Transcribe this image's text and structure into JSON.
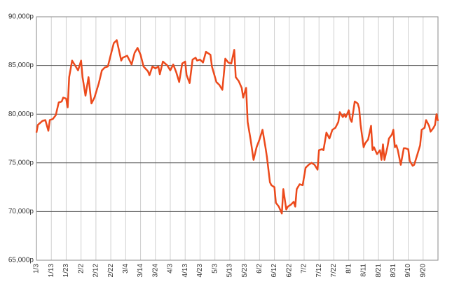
{
  "chart_data": {
    "type": "line",
    "color": "#ec4a1c",
    "grid": true,
    "x": [
      0,
      1,
      4,
      6,
      8,
      9,
      11,
      13,
      15,
      17,
      18,
      20,
      21,
      22,
      24,
      26,
      28,
      30,
      31,
      33,
      35,
      37,
      39,
      42,
      44,
      46,
      48,
      50,
      52,
      54,
      57,
      58,
      61,
      64,
      66,
      68,
      70,
      72,
      75,
      76,
      78,
      80,
      82,
      83,
      85,
      88,
      90,
      92,
      94,
      96,
      98,
      100,
      101,
      103,
      105,
      107,
      108,
      110,
      112,
      114,
      117,
      118,
      121,
      123,
      125,
      127,
      129,
      131,
      133,
      134,
      136,
      138,
      139,
      141,
      142,
      144,
      146,
      148,
      150,
      152,
      154,
      155,
      157,
      158,
      160,
      161,
      163,
      165,
      166,
      168,
      169,
      171,
      173,
      174,
      175,
      177,
      179,
      181,
      183,
      185,
      187,
      189,
      190,
      192,
      193,
      195,
      197,
      199,
      201,
      203,
      204,
      206,
      207,
      208,
      210,
      211,
      212,
      214,
      216,
      217,
      218,
      220,
      221,
      223,
      225,
      226,
      227,
      229,
      231,
      232,
      233,
      234,
      236,
      237,
      239,
      240,
      241,
      242,
      243,
      245,
      247,
      248,
      250,
      251,
      253,
      254,
      256,
      258,
      259,
      261,
      262,
      264,
      265,
      267,
      268,
      269,
      270
    ],
    "values": [
      78100,
      78900,
      79300,
      79400,
      78300,
      79400,
      79500,
      79900,
      81200,
      81300,
      81700,
      81600,
      80700,
      83800,
      85500,
      85000,
      84500,
      85500,
      83800,
      81900,
      83800,
      81100,
      81700,
      83200,
      84500,
      84800,
      84900,
      86100,
      87300,
      87600,
      85500,
      85800,
      86000,
      85100,
      86300,
      86800,
      86100,
      84900,
      84400,
      84000,
      84900,
      84700,
      84900,
      84100,
      85400,
      85000,
      84500,
      85100,
      84300,
      83300,
      85200,
      85400,
      84000,
      83200,
      85600,
      85800,
      85500,
      85600,
      85300,
      86400,
      86100,
      84900,
      83300,
      83000,
      82500,
      85700,
      85300,
      85200,
      86600,
      83800,
      83400,
      82700,
      81700,
      82700,
      79200,
      77400,
      75300,
      76600,
      77400,
      78400,
      76600,
      75600,
      73000,
      72700,
      72500,
      70900,
      70500,
      69800,
      72300,
      70200,
      70500,
      70700,
      71000,
      70500,
      72300,
      72800,
      72700,
      74500,
      74800,
      75000,
      74800,
      74300,
      76300,
      76400,
      76300,
      78100,
      77500,
      78400,
      78600,
      79200,
      80200,
      79700,
      80000,
      79700,
      80400,
      79500,
      79200,
      81300,
      81100,
      80600,
      78900,
      76600,
      77000,
      77400,
      78800,
      76300,
      76600,
      75900,
      76300,
      75300,
      76900,
      75300,
      76600,
      77500,
      77900,
      78400,
      76600,
      76800,
      76300,
      74800,
      76500,
      76500,
      76400,
      75200,
      74700,
      74800,
      75800,
      76800,
      78400,
      78600,
      79400,
      78800,
      78200,
      78600,
      78900,
      80000,
      79300
    ],
    "xlim": [
      0,
      270
    ],
    "xticks": [
      {
        "value": 0,
        "label": "1/3"
      },
      {
        "value": 10,
        "label": "1/13"
      },
      {
        "value": 20,
        "label": "1/23"
      },
      {
        "value": 30,
        "label": "2/2"
      },
      {
        "value": 40,
        "label": "2/12"
      },
      {
        "value": 50,
        "label": "2/22"
      },
      {
        "value": 60,
        "label": "3/4"
      },
      {
        "value": 70,
        "label": "3/14"
      },
      {
        "value": 80,
        "label": "3/24"
      },
      {
        "value": 90,
        "label": "4/3"
      },
      {
        "value": 100,
        "label": "4/13"
      },
      {
        "value": 110,
        "label": "4/23"
      },
      {
        "value": 120,
        "label": "5/3"
      },
      {
        "value": 130,
        "label": "5/13"
      },
      {
        "value": 140,
        "label": "5/23"
      },
      {
        "value": 150,
        "label": "6/2"
      },
      {
        "value": 160,
        "label": "6/12"
      },
      {
        "value": 170,
        "label": "6/22"
      },
      {
        "value": 180,
        "label": "7/2"
      },
      {
        "value": 190,
        "label": "7/12"
      },
      {
        "value": 200,
        "label": "7/22"
      },
      {
        "value": 210,
        "label": "8/1"
      },
      {
        "value": 220,
        "label": "8/11"
      },
      {
        "value": 230,
        "label": "8/21"
      },
      {
        "value": 240,
        "label": "8/31"
      },
      {
        "value": 250,
        "label": "9/10"
      },
      {
        "value": 260,
        "label": "9/20"
      }
    ],
    "ylim": [
      65000,
      90000
    ],
    "yticks": [
      {
        "value": 65000,
        "label": "65,000p"
      },
      {
        "value": 70000,
        "label": "70,000p"
      },
      {
        "value": 75000,
        "label": "75,000p"
      },
      {
        "value": 80000,
        "label": "80,000p"
      },
      {
        "value": 85000,
        "label": "85,000p"
      },
      {
        "value": 90000,
        "label": "90,000p"
      }
    ]
  }
}
